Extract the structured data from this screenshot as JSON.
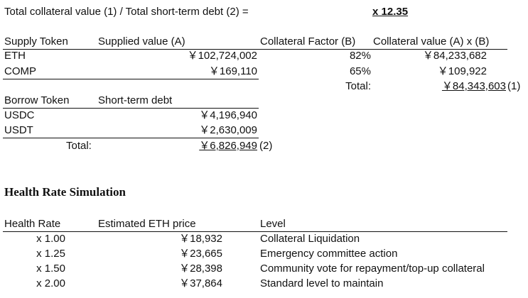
{
  "summary": {
    "label": "Total collateral value (1) / Total short-term debt (2) =",
    "value": "x 12.35"
  },
  "supply": {
    "headers": [
      "Supply Token",
      "Supplied value (A)",
      "Collateral Factor (B)",
      "Collateral value (A) x (B)"
    ],
    "rows": [
      {
        "token": "ETH",
        "supplied": "￥102,724,002",
        "factor": "82%",
        "collateral": "￥84,233,682"
      },
      {
        "token": "COMP",
        "supplied": "￥169,110",
        "factor": "65%",
        "collateral": "￥109,922"
      }
    ],
    "total_label": "Total:",
    "total_value": "￥84,343,603",
    "total_note": "(1)"
  },
  "borrow": {
    "headers": [
      "Borrow Token",
      "Short-term debt"
    ],
    "rows": [
      {
        "token": "USDC",
        "debt": "￥4,196,940"
      },
      {
        "token": "USDT",
        "debt": "￥2,630,009"
      }
    ],
    "total_label": "Total:",
    "total_value": "￥6,826,949",
    "total_note": "(2)"
  },
  "simulation": {
    "title": "Health Rate Simulation",
    "headers": [
      "Health Rate",
      "Estimated ETH price",
      "Level"
    ],
    "rows": [
      {
        "rate": "x 1.00",
        "price": "￥18,932",
        "level": "Collateral Liquidation"
      },
      {
        "rate": "x 1.25",
        "price": "￥23,665",
        "level": "Emergency committee action"
      },
      {
        "rate": "x 1.50",
        "price": "￥28,398",
        "level": "Community vote for repayment/top-up collateral"
      },
      {
        "rate": "x 2.00",
        "price": "￥37,864",
        "level": "Standard level to maintain"
      }
    ]
  }
}
